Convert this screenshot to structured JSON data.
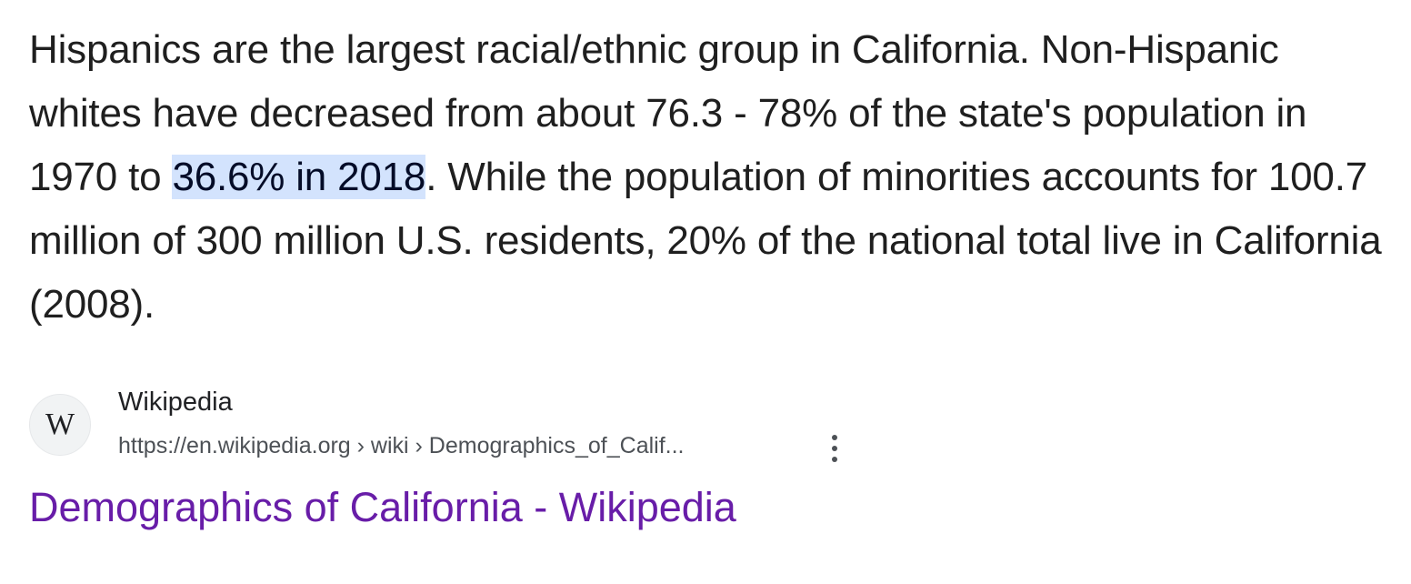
{
  "snippet": {
    "before": "Hispanics are the largest racial/ethnic group in California. Non-Hispanic whites have decreased from about 76.3 - 78% of the state's population in 1970 to ",
    "highlight": "36.6% in 2018",
    "after": ". While the population of minorities accounts for 100.7 million of 300 million U.S. residents, 20% of the national total live in California (2008)."
  },
  "source": {
    "favicon_letter": "W",
    "site_name": "Wikipedia",
    "cite": "https://en.wikipedia.org › wiki › Demographics_of_Calif...",
    "menu_icon": "more-vert-icon"
  },
  "result": {
    "title": "Demographics of California - Wikipedia"
  },
  "colors": {
    "highlight_bg": "#d3e3fd",
    "visited_link": "#681da8"
  }
}
